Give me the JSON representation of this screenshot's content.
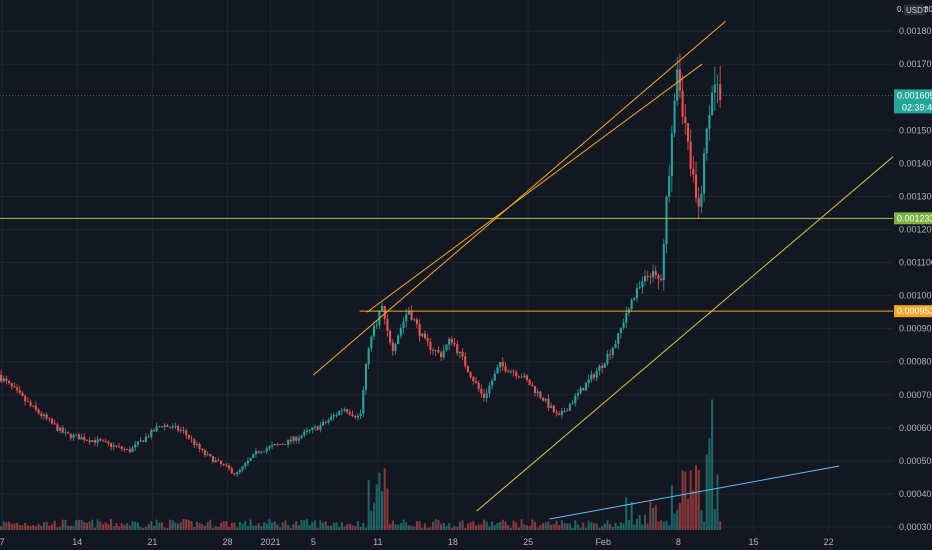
{
  "currency_label": "USDT",
  "corner_price_fragment": "0.",
  "corner_time_fragment": "30",
  "colors": {
    "background": "#131722",
    "grid": "#1f2432",
    "up": "#26a69a",
    "down": "#ef5350",
    "channel": "#f5a623",
    "support": "#d4c83a",
    "volume_trend": "#4fc3f7",
    "hline_green": "#a5c64a",
    "hline_orange": "#f5a623",
    "price_badge": "#26a69a",
    "axis_text": "#b2b5be"
  },
  "price_badge": {
    "price": "0.00160566",
    "countdown": "02:39:40"
  },
  "level_badges": [
    {
      "label": "0.00123383",
      "value": 0.00123383,
      "color": "#7cb342"
    },
    {
      "label": "0.00095305",
      "value": 0.00095305,
      "color": "#f5a623"
    }
  ],
  "chart_data": {
    "type": "candlestick",
    "y_ticks": [
      "0.00180000",
      "0.00170000",
      "0.00150000",
      "0.00140000",
      "0.00130000",
      "0.00120000",
      "0.00110000",
      "0.00100000",
      "0.00090000",
      "0.00080000",
      "0.00070000",
      "0.00060000",
      "0.00050000",
      "0.00040000",
      "0.00030000"
    ],
    "ylim": [
      0.000285,
      0.00187
    ],
    "x_ticks": [
      "7",
      "14",
      "21",
      "28",
      "2021",
      "5",
      "11",
      "18",
      "25",
      "Feb",
      "8",
      "15",
      "22"
    ],
    "x_ticks_days": [
      -25,
      -18,
      -11,
      -4,
      0,
      4,
      10,
      17,
      24,
      31,
      38,
      45,
      52
    ],
    "xlim_days": [
      -25.2,
      58
    ],
    "anchors": [
      [
        -25.2,
        0.00076
      ],
      [
        -22,
        0.00066
      ],
      [
        -19,
        0.00058
      ],
      [
        -16,
        0.00056
      ],
      [
        -13,
        0.00053
      ],
      [
        -10,
        0.00061
      ],
      [
        -8,
        0.00059
      ],
      [
        -6,
        0.00052
      ],
      [
        -3,
        0.00046
      ],
      [
        -1,
        0.00053
      ],
      [
        2,
        0.00056
      ],
      [
        5,
        0.00061
      ],
      [
        7,
        0.00066
      ],
      [
        8.5,
        0.00063
      ],
      [
        9.3,
        0.00085
      ],
      [
        10.5,
        0.00097
      ],
      [
        11.5,
        0.00084
      ],
      [
        13,
        0.00096
      ],
      [
        14.5,
        0.00086
      ],
      [
        16,
        0.00082
      ],
      [
        17,
        0.00087
      ],
      [
        18.5,
        0.00078
      ],
      [
        20,
        0.00069
      ],
      [
        21.5,
        0.00079
      ],
      [
        23.5,
        0.00076
      ],
      [
        25.5,
        0.00069
      ],
      [
        27,
        0.00063
      ],
      [
        29,
        0.00071
      ],
      [
        31,
        0.00079
      ],
      [
        32.5,
        0.00087
      ],
      [
        33.5,
        0.00097
      ],
      [
        35.5,
        0.00107
      ],
      [
        36.5,
        0.00104
      ],
      [
        37.2,
        0.00135
      ],
      [
        38,
        0.00172
      ],
      [
        39,
        0.00146
      ],
      [
        40,
        0.00124
      ],
      [
        40.6,
        0.00143
      ],
      [
        41.3,
        0.00165
      ],
      [
        41.8,
        0.00162
      ]
    ],
    "hlines": [
      0.00123383,
      0.00095305
    ],
    "trendlines": [
      {
        "name": "channel-upper",
        "from": [
          4,
          0.00076
        ],
        "to": [
          42.4,
          0.00183
        ]
      },
      {
        "name": "channel-lower",
        "from": [
          9,
          0.00095
        ],
        "to": [
          40.2,
          0.0017
        ]
      },
      {
        "name": "support-line",
        "from": [
          19.2,
          0.000348
        ],
        "to": [
          58,
          0.00142
        ]
      },
      {
        "name": "volume-trend",
        "from": [
          26,
          0.0
        ],
        "to": [
          53,
          0.0
        ]
      }
    ]
  }
}
